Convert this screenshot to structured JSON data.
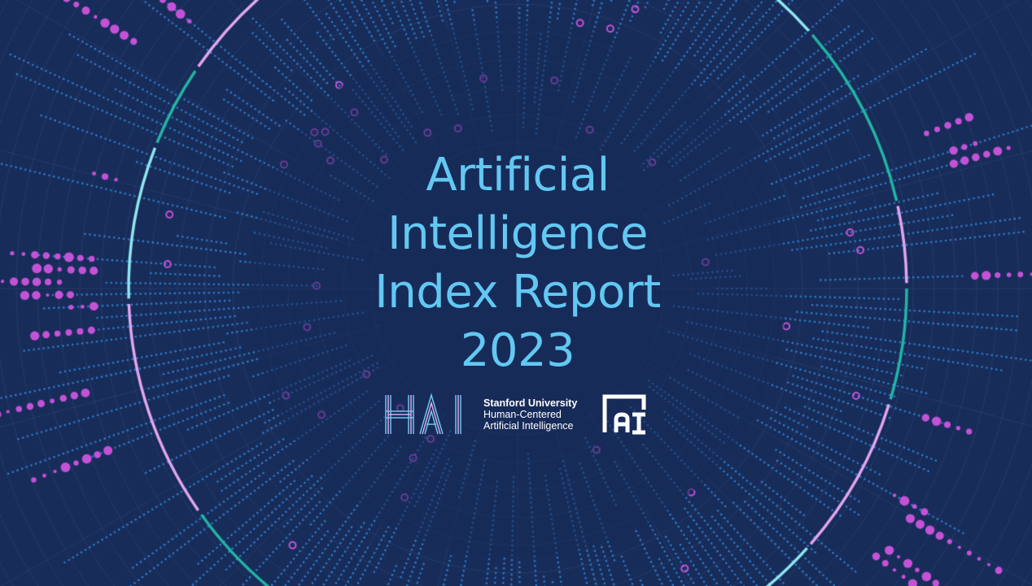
{
  "cover": {
    "title_lines": [
      "Artificial",
      "Intelligence",
      "Index Report",
      "2023"
    ]
  },
  "logos": {
    "hai_wordmark": "HAI",
    "org_name": "Stanford University",
    "org_line2": "Human-Centered",
    "org_line3": "Artificial Intelligence",
    "ai_index_mark": "AI"
  },
  "colors": {
    "background": "#182c5a",
    "title": "#62c8f2",
    "dots_blue": "#2d7cc8",
    "dots_magenta": "#c452d6",
    "ring_teal": "#22b5a4",
    "ring_pink": "#e2a6f0",
    "ring_cyan": "#8fe6f0"
  }
}
